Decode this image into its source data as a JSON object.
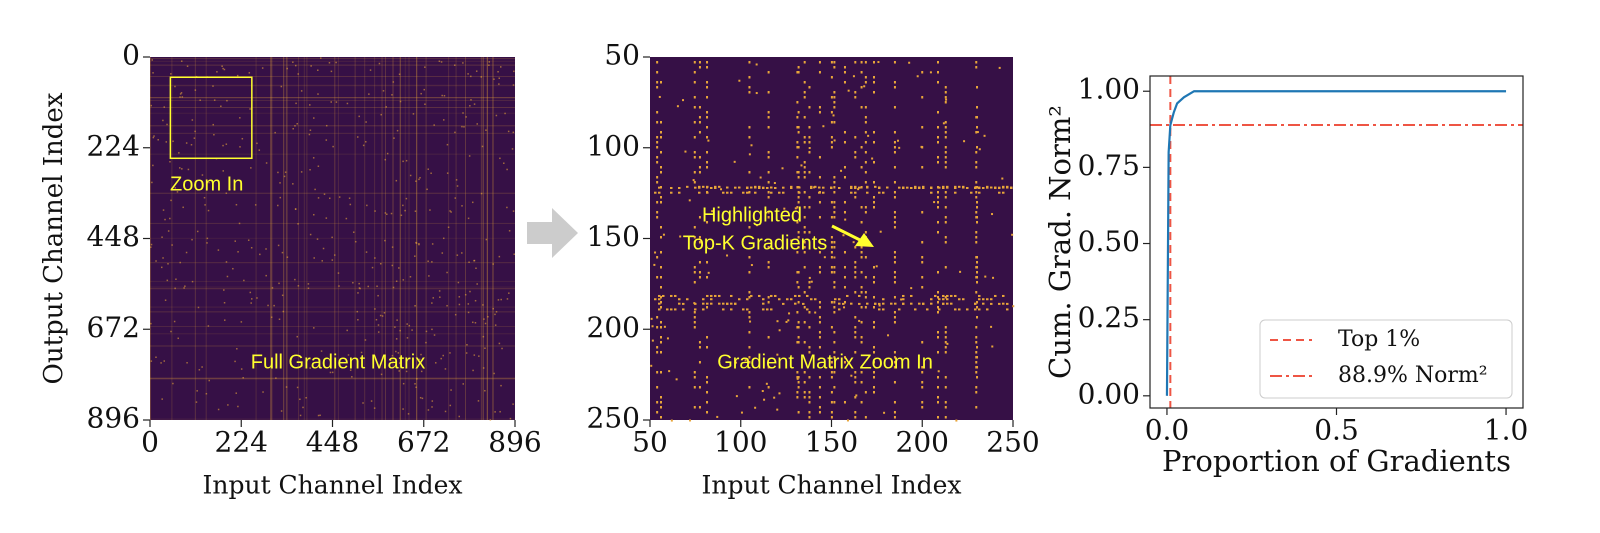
{
  "chart_data": [
    {
      "type": "heatmap",
      "xlabel": "Input Channel Index",
      "ylabel": "Output Channel Index",
      "xlim": [
        0,
        896
      ],
      "ylim": [
        896,
        0
      ],
      "xticks": [
        0,
        224,
        448,
        672,
        896
      ],
      "yticks": [
        0,
        224,
        448,
        672,
        896
      ],
      "colors": {
        "background": "#361046",
        "highlight": "#e8a53a",
        "annotation": "#ffff2e"
      },
      "zoom_box": {
        "xlim": [
          50,
          250
        ],
        "ylim": [
          50,
          250
        ]
      },
      "annotations": [
        "Zoom In",
        "Full Gradient Matrix"
      ]
    },
    {
      "type": "heatmap",
      "xlabel": "Input Channel Index",
      "xlim": [
        50,
        250
      ],
      "ylim": [
        250,
        50
      ],
      "xticks": [
        50,
        100,
        150,
        200,
        250
      ],
      "yticks": [
        50,
        100,
        150,
        200,
        250
      ],
      "colors": {
        "background": "#361046",
        "highlight": "#e8a53a",
        "annotation": "#ffff2e"
      },
      "annotations": [
        "Highlighted",
        "Top-K Gradients",
        "Gradient Matrix Zoom In"
      ]
    },
    {
      "type": "line",
      "xlabel": "Proportion of Gradients",
      "ylabel": "Cum. Grad. Norm²",
      "xlim": [
        -0.05,
        1.05
      ],
      "ylim": [
        -0.04,
        1.05
      ],
      "xticks": [
        {
          "value": 0,
          "label": "0.0"
        },
        {
          "value": 0.5,
          "label": "0.5"
        },
        {
          "value": 1,
          "label": "1.0"
        }
      ],
      "yticks": [
        {
          "value": 0,
          "label": "0.00"
        },
        {
          "value": 0.25,
          "label": "0.25"
        },
        {
          "value": 0.5,
          "label": "0.50"
        },
        {
          "value": 0.75,
          "label": "0.75"
        },
        {
          "value": 1,
          "label": "1.00"
        }
      ],
      "series": [
        {
          "color": "#1f77b4",
          "x": [
            0,
            0.005,
            0.01,
            0.02,
            0.03,
            0.05,
            0.08,
            1.0
          ],
          "values": [
            0,
            0.8,
            0.889,
            0.93,
            0.96,
            0.98,
            1.0,
            1.0
          ]
        }
      ],
      "reference_lines": [
        {
          "name": "Top 1%",
          "orientation": "vertical",
          "value": 0.01,
          "color": "#ee5544",
          "style": "dashed"
        },
        {
          "name": "88.9% Norm²",
          "orientation": "horizontal",
          "value": 0.889,
          "color": "#ee5544",
          "style": "dashdot"
        }
      ],
      "legend": "lower right"
    }
  ]
}
